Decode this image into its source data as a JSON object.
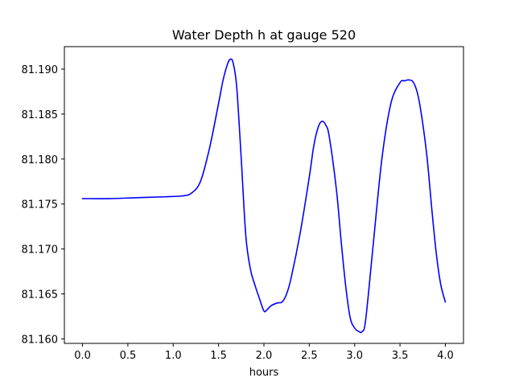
{
  "chart_data": {
    "type": "line",
    "title": "Water Depth h at gauge 520",
    "xlabel": "hours",
    "ylabel": "",
    "xlim": [
      -0.2,
      4.2
    ],
    "ylim": [
      81.1595,
      81.1925
    ],
    "xticks": [
      0.0,
      0.5,
      1.0,
      1.5,
      2.0,
      2.5,
      3.0,
      3.5,
      4.0
    ],
    "xtick_labels": [
      "0.0",
      "0.5",
      "1.0",
      "1.5",
      "2.0",
      "2.5",
      "3.0",
      "3.5",
      "4.0"
    ],
    "yticks": [
      81.16,
      81.165,
      81.17,
      81.175,
      81.18,
      81.185,
      81.19
    ],
    "ytick_labels": [
      "81.160",
      "81.165",
      "81.170",
      "81.175",
      "81.180",
      "81.185",
      "81.190"
    ],
    "grid": false,
    "series": [
      {
        "color": "#0000ff",
        "x": [
          0.0,
          0.3,
          0.6,
          0.9,
          1.1,
          1.2,
          1.3,
          1.4,
          1.5,
          1.55,
          1.6,
          1.63,
          1.66,
          1.7,
          1.75,
          1.8,
          1.85,
          1.9,
          1.95,
          2.0,
          2.03,
          2.08,
          2.15,
          2.2,
          2.25,
          2.3,
          2.4,
          2.5,
          2.55,
          2.6,
          2.64,
          2.68,
          2.72,
          2.8,
          2.85,
          2.9,
          2.95,
          3.0,
          3.05,
          3.08,
          3.12,
          3.2,
          3.3,
          3.4,
          3.5,
          3.55,
          3.6,
          3.65,
          3.7,
          3.75,
          3.8,
          3.85,
          3.9,
          3.95,
          4.0
        ],
        "y": [
          81.1756,
          81.1756,
          81.1757,
          81.1758,
          81.1759,
          81.1762,
          81.1775,
          81.1812,
          81.1862,
          81.1888,
          81.1906,
          81.1911,
          81.1907,
          81.188,
          81.18,
          81.1715,
          81.1678,
          81.166,
          81.1645,
          81.1631,
          81.1632,
          81.1637,
          81.164,
          81.1641,
          81.165,
          81.1668,
          81.1718,
          81.178,
          81.1815,
          81.1836,
          81.1842,
          81.1838,
          81.1825,
          81.1765,
          81.171,
          81.166,
          81.1624,
          81.1612,
          81.1608,
          81.1608,
          81.162,
          81.17,
          81.18,
          81.1862,
          81.1885,
          81.1887,
          81.1888,
          81.1885,
          81.187,
          81.184,
          81.18,
          81.1745,
          81.1695,
          81.166,
          81.1641
        ]
      }
    ]
  }
}
